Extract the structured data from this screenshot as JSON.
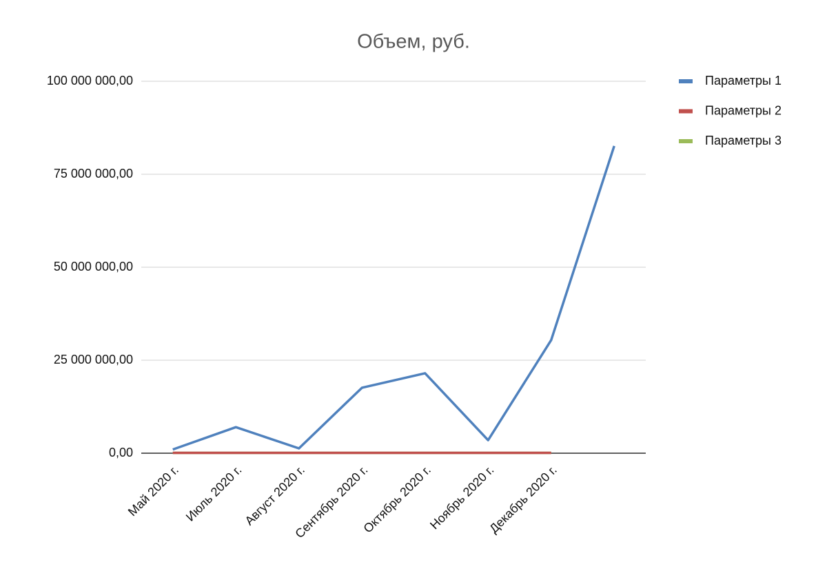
{
  "chart_data": {
    "type": "line",
    "title": "Объем, руб.",
    "categories": [
      "Май 2020 г.",
      "Июль 2020 г.",
      "Август 2020 г.",
      "Сентябрь 2020 г.",
      "Октябрь 2020 г.",
      "Ноябрь 2020 г.",
      "Декабрь 2020 г.",
      null
    ],
    "series": [
      {
        "name": "Параметры 1",
        "color": "#4f81bd",
        "values": [
          1000000,
          7000000,
          1300000,
          17600000,
          21500000,
          3500000,
          30400000,
          82600000
        ]
      },
      {
        "name": "Параметры 2",
        "color": "#c0504d",
        "values": [
          100000,
          100000,
          100000,
          100000,
          100000,
          100000,
          100000,
          null
        ]
      },
      {
        "name": "Параметры 3",
        "color": "#9bbb59",
        "values": [
          100000,
          100000,
          100000,
          100000,
          100000,
          100000,
          100000,
          null
        ]
      }
    ],
    "ylim": [
      0,
      100000000
    ],
    "yticks": [
      {
        "value": 0,
        "label": "0,00"
      },
      {
        "value": 25000000,
        "label": "25 000 000,00"
      },
      {
        "value": 50000000,
        "label": "50 000 000,00"
      },
      {
        "value": 75000000,
        "label": "75 000 000,00"
      },
      {
        "value": 100000000,
        "label": "100 000 000,00"
      }
    ],
    "grid": true,
    "legend": "right"
  }
}
